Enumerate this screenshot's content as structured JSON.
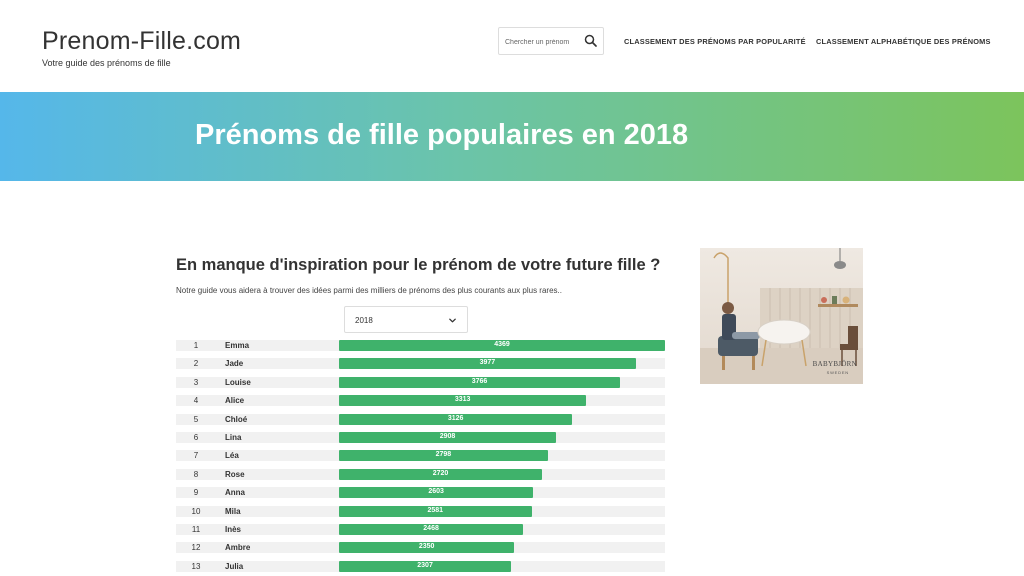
{
  "header": {
    "site_title": "Prenom-Fille.com",
    "tagline": "Votre guide des prénoms de fille",
    "search_placeholder": "Chercher un prénom",
    "nav": [
      {
        "label": "CLASSEMENT DES PRÉNOMS PAR POPULARITÉ"
      },
      {
        "label": "CLASSEMENT ALPHABÉTIQUE DES PRÉNOMS"
      }
    ]
  },
  "banner": {
    "title": "Prénoms de fille populaires en 2018"
  },
  "main": {
    "intro_title": "En manque d'inspiration pour le prénom de votre future fille ?",
    "intro_text": "Notre guide vous aidera à trouver des idées parmi des milliers de prénoms des plus courants aux plus rares..",
    "year_selected": "2018"
  },
  "ad": {
    "brand": "BABYBJÖRN",
    "sub": "SWEDEN"
  },
  "colors": {
    "bar": "#3fb26b",
    "banner_start": "#55b7ea",
    "banner_end": "#7cc45c"
  },
  "chart_data": {
    "type": "bar",
    "max_value": 4369,
    "rows": [
      {
        "rank": "1",
        "name": "Emma",
        "value": 4369
      },
      {
        "rank": "2",
        "name": "Jade",
        "value": 3977
      },
      {
        "rank": "3",
        "name": "Louise",
        "value": 3766
      },
      {
        "rank": "4",
        "name": "Alice",
        "value": 3313
      },
      {
        "rank": "5",
        "name": "Chloé",
        "value": 3126
      },
      {
        "rank": "6",
        "name": "Lina",
        "value": 2908
      },
      {
        "rank": "7",
        "name": "Léa",
        "value": 2798
      },
      {
        "rank": "8",
        "name": "Rose",
        "value": 2720
      },
      {
        "rank": "9",
        "name": "Anna",
        "value": 2603
      },
      {
        "rank": "10",
        "name": "Mila",
        "value": 2581
      },
      {
        "rank": "11",
        "name": "Inès",
        "value": 2468
      },
      {
        "rank": "12",
        "name": "Ambre",
        "value": 2350
      },
      {
        "rank": "13",
        "name": "Julia",
        "value": 2307
      }
    ]
  }
}
